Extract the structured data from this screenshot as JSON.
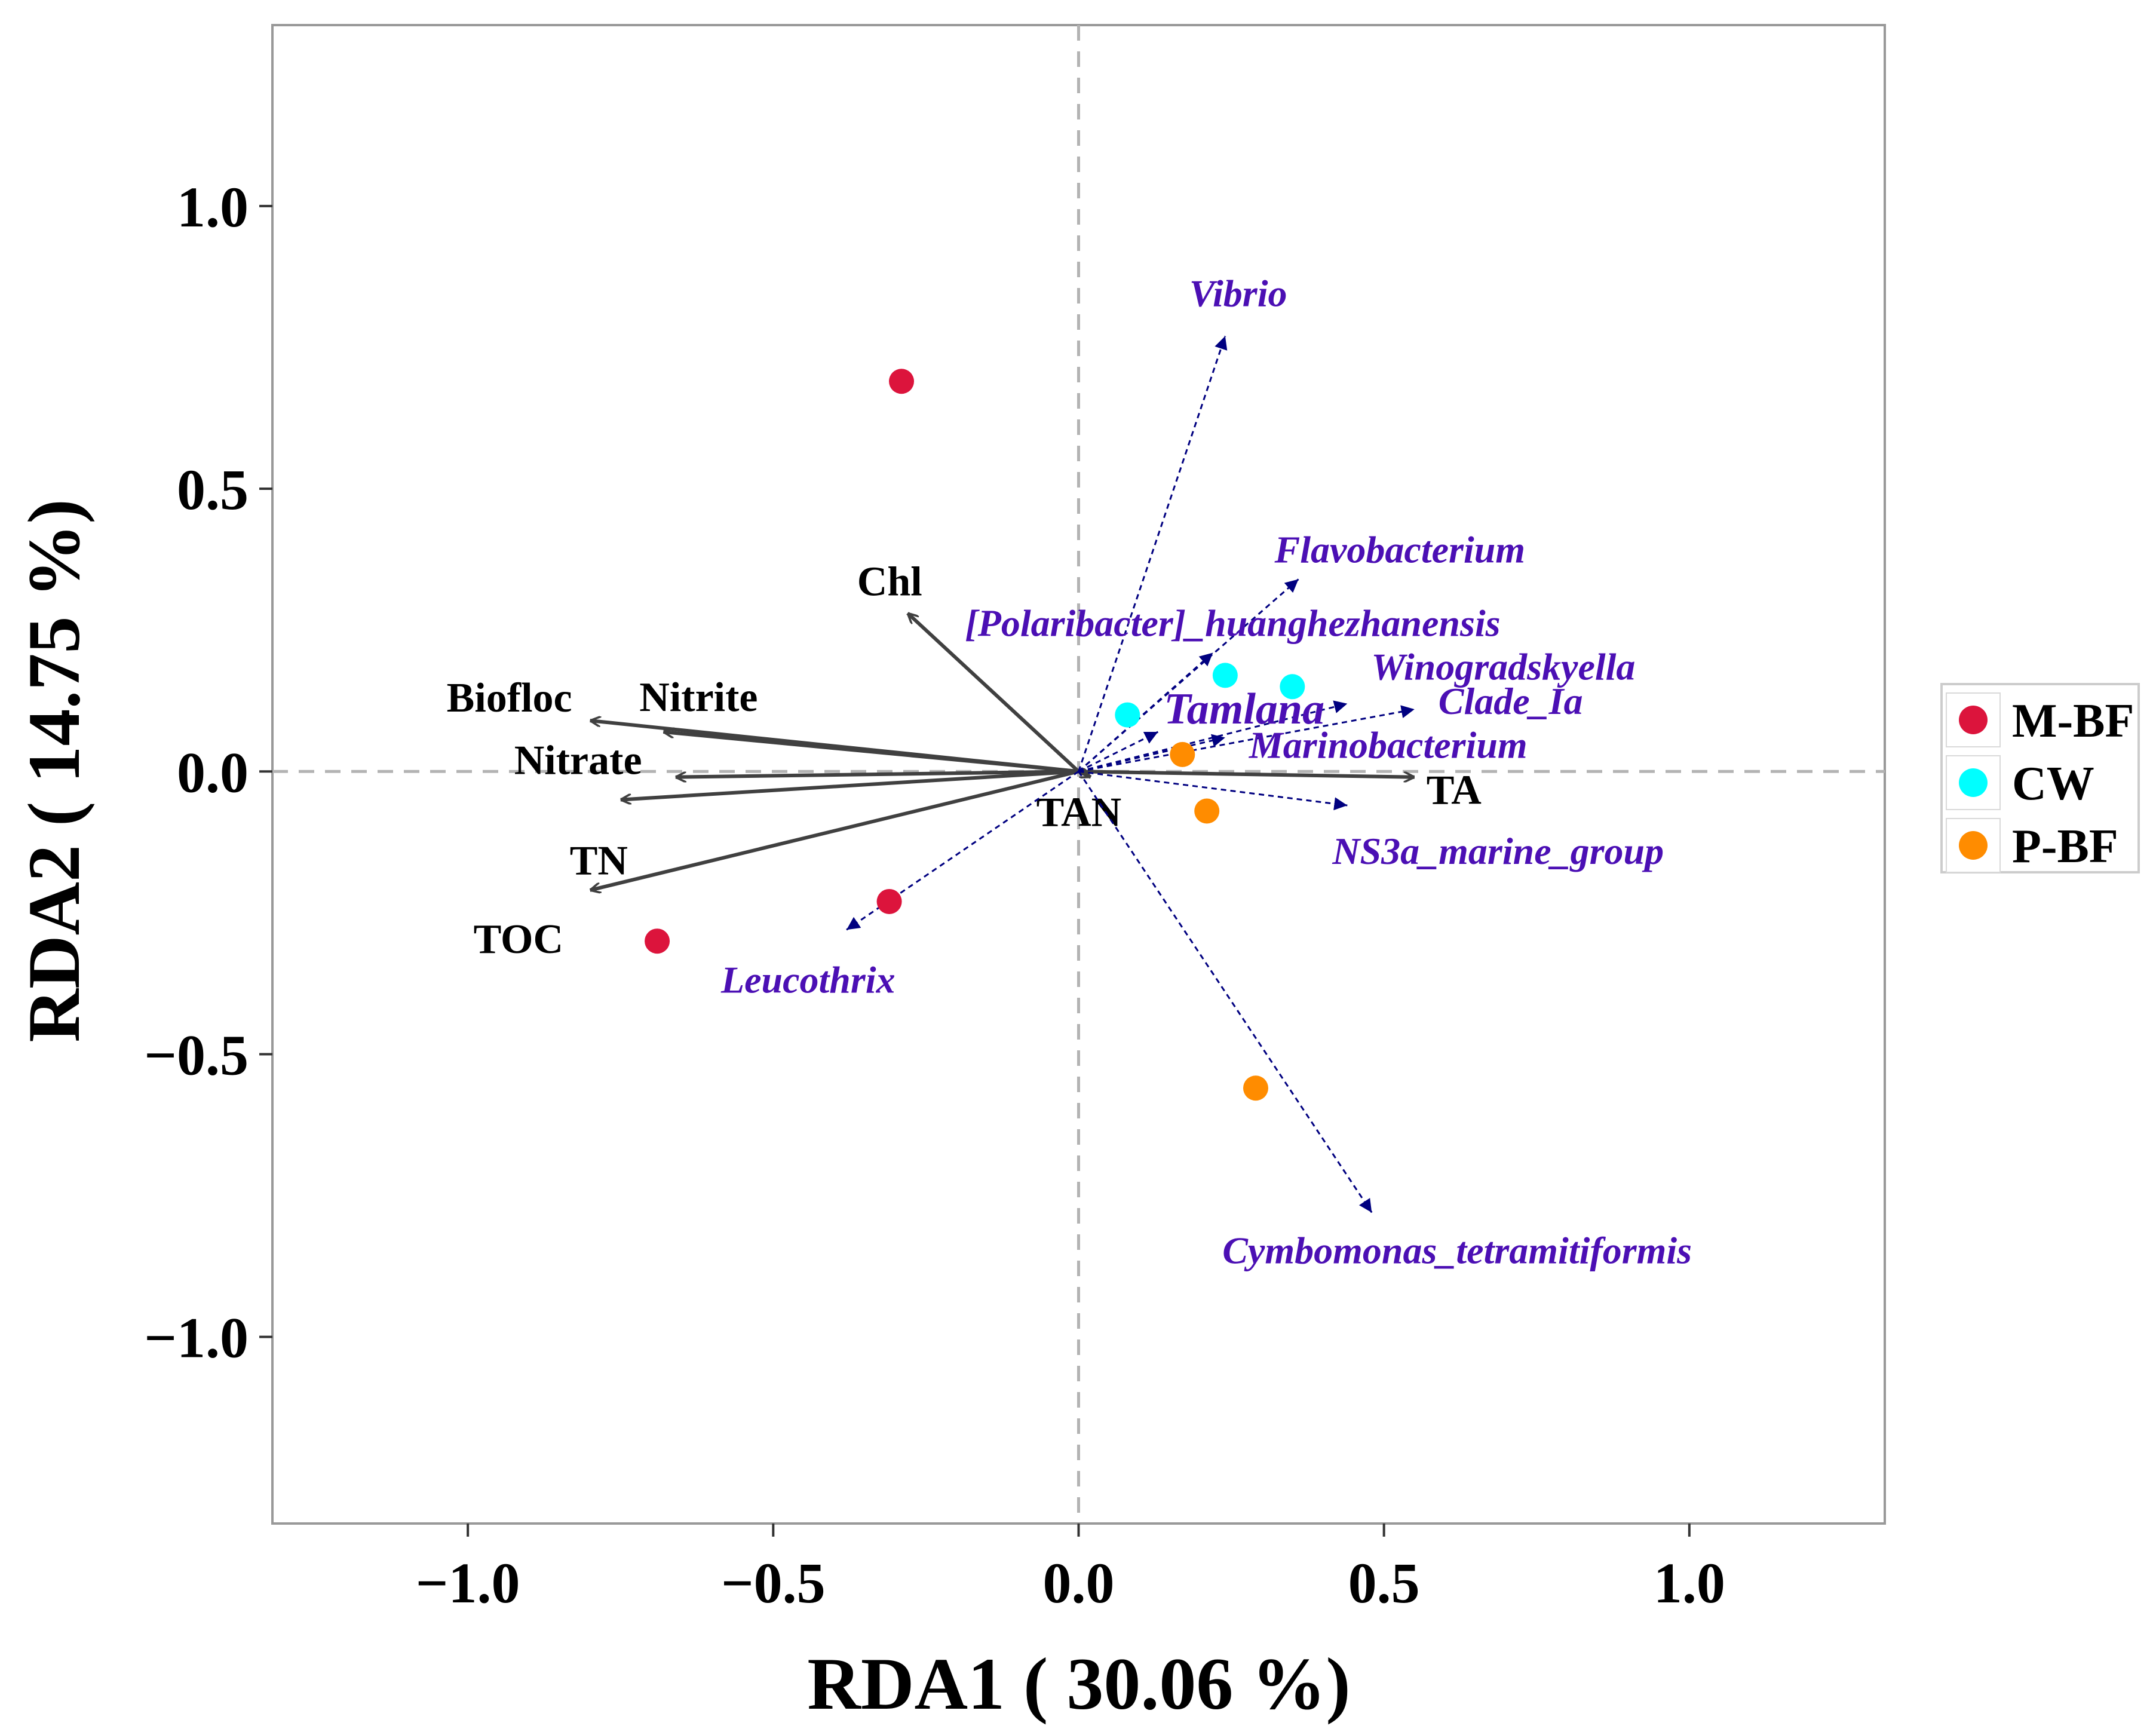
{
  "chart_data": {
    "type": "scatter",
    "subtype": "rda-biplot",
    "xlabel": "RDA1 ( 30.06 %)",
    "ylabel": "RDA2 ( 14.75 %)",
    "xlim": [
      -1.32,
      1.32
    ],
    "ylim": [
      -1.33,
      1.32
    ],
    "x_ticks": [
      {
        "value": -1.0,
        "label": "−1.0"
      },
      {
        "value": -0.5,
        "label": "−0.5"
      },
      {
        "value": 0.0,
        "label": "0.0"
      },
      {
        "value": 0.5,
        "label": "0.5"
      },
      {
        "value": 1.0,
        "label": "1.0"
      }
    ],
    "y_ticks": [
      {
        "value": 1.0,
        "label": "1.0"
      },
      {
        "value": 0.5,
        "label": "0.5"
      },
      {
        "value": 0.0,
        "label": "0.0"
      },
      {
        "value": -0.5,
        "label": "−0.5"
      },
      {
        "value": -1.0,
        "label": "−1.0"
      }
    ],
    "grid": false,
    "reference_lines": {
      "x": 0,
      "y": 0,
      "style": "dashed"
    },
    "legend": {
      "placement": "right",
      "entries": [
        {
          "name": "M-BF",
          "color": "#DC143C"
        },
        {
          "name": "CW",
          "color": "#00FFFF"
        },
        {
          "name": "P-BF",
          "color": "#FF8C00"
        }
      ]
    },
    "samples": [
      {
        "group": "M-BF",
        "x": -0.29,
        "y": 0.69
      },
      {
        "group": "M-BF",
        "x": -0.31,
        "y": -0.23
      },
      {
        "group": "M-BF",
        "x": -0.69,
        "y": -0.3
      },
      {
        "group": "CW",
        "x": 0.08,
        "y": 0.1
      },
      {
        "group": "CW",
        "x": 0.24,
        "y": 0.17
      },
      {
        "group": "CW",
        "x": 0.35,
        "y": 0.15
      },
      {
        "group": "P-BF",
        "x": 0.17,
        "y": 0.03
      },
      {
        "group": "P-BF",
        "x": 0.21,
        "y": -0.07
      },
      {
        "group": "P-BF",
        "x": 0.29,
        "y": -0.56
      }
    ],
    "environmental_vectors": {
      "color": "#404040",
      "items": [
        {
          "name": "Chl",
          "x": -0.28,
          "y": 0.28
        },
        {
          "name": "Biofloc",
          "x": -0.8,
          "y": 0.09
        },
        {
          "name": "Nitrite",
          "x": -0.68,
          "y": 0.07
        },
        {
          "name": "Nitrate",
          "x": -0.66,
          "y": -0.01
        },
        {
          "name": "TN",
          "x": -0.75,
          "y": -0.05
        },
        {
          "name": "TOC",
          "x": -0.8,
          "y": -0.21
        },
        {
          "name": "TAN",
          "x": 0.02,
          "y": -0.01
        },
        {
          "name": "TA",
          "x": 0.55,
          "y": -0.01
        }
      ]
    },
    "taxa_vectors": {
      "color": "#000080",
      "label_color": "#4B0FB4",
      "items": [
        {
          "name": "Vibrio",
          "x": 0.24,
          "y": 0.77
        },
        {
          "name": "Flavobacterium",
          "x": 0.36,
          "y": 0.34
        },
        {
          "name": "[Polaribacter]_huanghezhanensis",
          "x": 0.22,
          "y": 0.21
        },
        {
          "name": "Winogradskyella",
          "x": 0.44,
          "y": 0.12
        },
        {
          "name": "Tamlana",
          "x": 0.13,
          "y": 0.07
        },
        {
          "name": "Clade_Ia",
          "x": 0.55,
          "y": 0.11
        },
        {
          "name": "Marinobacterium",
          "x": 0.24,
          "y": 0.06
        },
        {
          "name": "NS3a_marine_group",
          "x": 0.44,
          "y": -0.06
        },
        {
          "name": "Leucothrix",
          "x": -0.38,
          "y": -0.28
        },
        {
          "name": "Cymbomonas_tetramitiformis",
          "x": 0.48,
          "y": -0.78
        }
      ]
    }
  }
}
